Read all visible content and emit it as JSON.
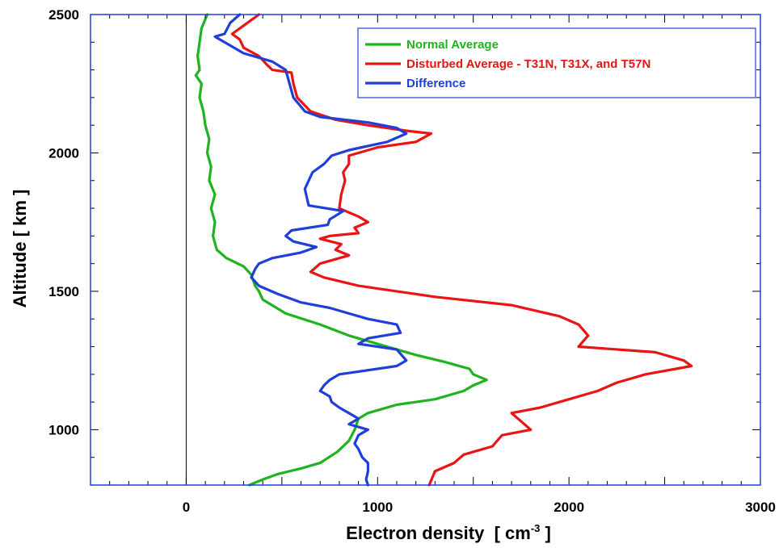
{
  "chart_data": {
    "type": "line",
    "xlabel": "Electron density",
    "xlabel_unit_prefix": "[ cm",
    "xlabel_unit_exp": "-3",
    "xlabel_unit_suffix": " ]",
    "ylabel": "Altitude [  km ]",
    "xlim": [
      -500,
      3000
    ],
    "ylim": [
      800,
      2500
    ],
    "x_tick_labels": [
      {
        "value": 0,
        "label": "0"
      },
      {
        "value": 1000,
        "label": "1000"
      },
      {
        "value": 2000,
        "label": "2000"
      },
      {
        "value": 3000,
        "label": "3000"
      }
    ],
    "y_tick_labels": [
      {
        "value": 1000,
        "label": "1000"
      },
      {
        "value": 1500,
        "label": "1500"
      },
      {
        "value": 2000,
        "label": "2000"
      },
      {
        "value": 2500,
        "label": "2500"
      }
    ],
    "zero_reference_line_x": 0,
    "legend_position": "top-right",
    "grid": false,
    "series": [
      {
        "name": "Normal Average",
        "color": "#1fb31f",
        "points": [
          [
            110,
            2500
          ],
          [
            80,
            2450
          ],
          [
            70,
            2400
          ],
          [
            60,
            2350
          ],
          [
            70,
            2300
          ],
          [
            50,
            2280
          ],
          [
            80,
            2250
          ],
          [
            70,
            2200
          ],
          [
            90,
            2150
          ],
          [
            100,
            2100
          ],
          [
            120,
            2050
          ],
          [
            110,
            2000
          ],
          [
            130,
            1950
          ],
          [
            120,
            1900
          ],
          [
            150,
            1850
          ],
          [
            130,
            1800
          ],
          [
            150,
            1750
          ],
          [
            140,
            1700
          ],
          [
            160,
            1650
          ],
          [
            210,
            1620
          ],
          [
            300,
            1590
          ],
          [
            340,
            1560
          ],
          [
            360,
            1520
          ],
          [
            380,
            1500
          ],
          [
            400,
            1470
          ],
          [
            520,
            1420
          ],
          [
            700,
            1380
          ],
          [
            850,
            1340
          ],
          [
            1050,
            1300
          ],
          [
            1200,
            1270
          ],
          [
            1350,
            1245
          ],
          [
            1480,
            1220
          ],
          [
            1500,
            1200
          ],
          [
            1570,
            1180
          ],
          [
            1500,
            1160
          ],
          [
            1450,
            1140
          ],
          [
            1300,
            1110
          ],
          [
            1100,
            1090
          ],
          [
            950,
            1060
          ],
          [
            900,
            1040
          ],
          [
            880,
            1000
          ],
          [
            850,
            960
          ],
          [
            790,
            920
          ],
          [
            700,
            880
          ],
          [
            600,
            860
          ],
          [
            480,
            840
          ],
          [
            400,
            820
          ],
          [
            330,
            800
          ]
        ]
      },
      {
        "name": "Disturbed Average - T31N, T31X, and T57N",
        "color": "#e81515",
        "points": [
          [
            380,
            2500
          ],
          [
            320,
            2470
          ],
          [
            240,
            2430
          ],
          [
            280,
            2410
          ],
          [
            300,
            2380
          ],
          [
            380,
            2350
          ],
          [
            420,
            2320
          ],
          [
            450,
            2300
          ],
          [
            550,
            2290
          ],
          [
            560,
            2250
          ],
          [
            580,
            2200
          ],
          [
            650,
            2150
          ],
          [
            780,
            2120
          ],
          [
            950,
            2100
          ],
          [
            1150,
            2080
          ],
          [
            1280,
            2070
          ],
          [
            1200,
            2040
          ],
          [
            1000,
            2020
          ],
          [
            850,
            1990
          ],
          [
            850,
            1960
          ],
          [
            820,
            1930
          ],
          [
            830,
            1900
          ],
          [
            810,
            1850
          ],
          [
            800,
            1800
          ],
          [
            900,
            1770
          ],
          [
            950,
            1750
          ],
          [
            880,
            1730
          ],
          [
            900,
            1710
          ],
          [
            750,
            1700
          ],
          [
            700,
            1690
          ],
          [
            810,
            1670
          ],
          [
            780,
            1650
          ],
          [
            850,
            1630
          ],
          [
            750,
            1610
          ],
          [
            700,
            1600
          ],
          [
            650,
            1570
          ],
          [
            720,
            1550
          ],
          [
            900,
            1520
          ],
          [
            1300,
            1480
          ],
          [
            1700,
            1450
          ],
          [
            1950,
            1410
          ],
          [
            2050,
            1380
          ],
          [
            2100,
            1340
          ],
          [
            2050,
            1300
          ],
          [
            2450,
            1280
          ],
          [
            2600,
            1250
          ],
          [
            2640,
            1230
          ],
          [
            2400,
            1200
          ],
          [
            2250,
            1170
          ],
          [
            2150,
            1140
          ],
          [
            2000,
            1110
          ],
          [
            1850,
            1080
          ],
          [
            1700,
            1060
          ],
          [
            1750,
            1030
          ],
          [
            1800,
            1000
          ],
          [
            1650,
            980
          ],
          [
            1600,
            940
          ],
          [
            1450,
            910
          ],
          [
            1400,
            880
          ],
          [
            1300,
            850
          ],
          [
            1270,
            800
          ]
        ]
      },
      {
        "name": "Difference",
        "color": "#1f3fd9",
        "points": [
          [
            280,
            2500
          ],
          [
            230,
            2470
          ],
          [
            200,
            2430
          ],
          [
            150,
            2420
          ],
          [
            200,
            2400
          ],
          [
            300,
            2360
          ],
          [
            450,
            2330
          ],
          [
            520,
            2300
          ],
          [
            540,
            2250
          ],
          [
            560,
            2200
          ],
          [
            620,
            2150
          ],
          [
            700,
            2130
          ],
          [
            950,
            2110
          ],
          [
            1100,
            2090
          ],
          [
            1150,
            2070
          ],
          [
            1050,
            2040
          ],
          [
            850,
            2010
          ],
          [
            760,
            1990
          ],
          [
            720,
            1960
          ],
          [
            660,
            1930
          ],
          [
            640,
            1900
          ],
          [
            620,
            1870
          ],
          [
            630,
            1840
          ],
          [
            640,
            1810
          ],
          [
            820,
            1790
          ],
          [
            750,
            1760
          ],
          [
            740,
            1740
          ],
          [
            550,
            1720
          ],
          [
            520,
            1700
          ],
          [
            560,
            1680
          ],
          [
            680,
            1660
          ],
          [
            600,
            1640
          ],
          [
            450,
            1620
          ],
          [
            380,
            1600
          ],
          [
            360,
            1580
          ],
          [
            340,
            1550
          ],
          [
            380,
            1520
          ],
          [
            480,
            1490
          ],
          [
            600,
            1460
          ],
          [
            750,
            1440
          ],
          [
            850,
            1420
          ],
          [
            950,
            1400
          ],
          [
            1100,
            1380
          ],
          [
            1120,
            1350
          ],
          [
            950,
            1330
          ],
          [
            900,
            1310
          ],
          [
            1100,
            1290
          ],
          [
            1150,
            1250
          ],
          [
            1100,
            1230
          ],
          [
            900,
            1210
          ],
          [
            800,
            1200
          ],
          [
            750,
            1180
          ],
          [
            720,
            1160
          ],
          [
            700,
            1140
          ],
          [
            750,
            1120
          ],
          [
            760,
            1100
          ],
          [
            800,
            1080
          ],
          [
            850,
            1060
          ],
          [
            900,
            1040
          ],
          [
            850,
            1020
          ],
          [
            950,
            1000
          ],
          [
            900,
            980
          ],
          [
            880,
            950
          ],
          [
            900,
            930
          ],
          [
            920,
            900
          ],
          [
            950,
            880
          ],
          [
            950,
            850
          ],
          [
            940,
            820
          ],
          [
            950,
            800
          ]
        ]
      }
    ]
  }
}
